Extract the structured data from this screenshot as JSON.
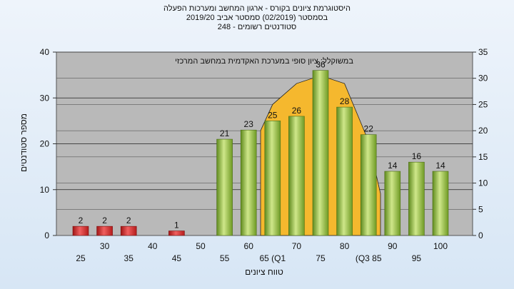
{
  "header": {
    "line1": "היסטוגרמת ציונים בקורס - ארגון המחשב ומערכות הפעלה",
    "line2": "בסמסטר  (02/2019)  סמסטר אביב 2019/20",
    "line3": "סטודנטים רשומים - 248"
  },
  "chart_data": {
    "type": "bar",
    "annotation": "במשוקלל: ציון סופי במערכת האקדמית במחשב המרכזי",
    "xlabel": "טווח ציונים",
    "ylabel": "מספר סטודנטים",
    "ylim": [
      0,
      40
    ],
    "y2lim": [
      0,
      35
    ],
    "yticks": [
      0,
      10,
      20,
      30,
      40
    ],
    "y2ticks": [
      0,
      5,
      10,
      15,
      20,
      25,
      30,
      35
    ],
    "x_ticks_row1": [
      "25",
      "35",
      "45",
      "55",
      "65 (Q1",
      "75",
      "(Q3 85",
      "95"
    ],
    "x_ticks_row2": [
      "30",
      "40",
      "50",
      "60",
      "70",
      "80",
      "90",
      "100"
    ],
    "categories": [
      "25",
      "30",
      "35",
      "40",
      "45",
      "50",
      "55",
      "60",
      "65",
      "70",
      "75",
      "80",
      "85",
      "90",
      "95",
      "100"
    ],
    "values": [
      2,
      2,
      2,
      0,
      1,
      0,
      21,
      23,
      25,
      26,
      36,
      28,
      22,
      14,
      16,
      14
    ],
    "labels": [
      "2",
      "2",
      "2",
      "",
      "1",
      "",
      "21",
      "23",
      "25",
      "26",
      "36",
      "28",
      "22",
      "14",
      "16",
      "14"
    ],
    "fail_color": "#d42a2a",
    "pass_color": "#8fba3c",
    "curve_color": "#f5b82e",
    "curve": {
      "x": [
        62.5,
        65,
        70,
        75,
        80,
        85,
        87.5
      ],
      "y": [
        20,
        25,
        29,
        30.5,
        29,
        18,
        8
      ]
    }
  }
}
